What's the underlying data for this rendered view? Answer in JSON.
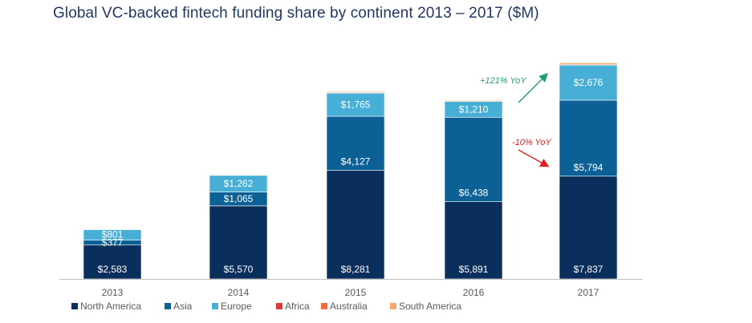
{
  "chart_data": {
    "type": "bar",
    "stacked": true,
    "title": "Global VC-backed fintech funding share by continent 2013 – 2017 ($M)",
    "categories": [
      "2013",
      "2014",
      "2015",
      "2016",
      "2017"
    ],
    "series": [
      {
        "name": "North America",
        "color": "#0b2f5c",
        "values": [
          2583,
          5570,
          8281,
          5891,
          7837
        ],
        "labels": [
          "$2,583",
          "$5,570",
          "$8,281",
          "$5,891",
          "$7,837"
        ]
      },
      {
        "name": "Asia",
        "color": "#0b6196",
        "values": [
          377,
          1065,
          4127,
          6438,
          5794
        ],
        "labels": [
          "$377",
          "$1,065",
          "$4,127",
          "$6,438",
          "$5,794"
        ]
      },
      {
        "name": "Europe",
        "color": "#47aed6",
        "values": [
          801,
          1262,
          1765,
          1210,
          2676
        ],
        "labels": [
          "$801",
          "$1,262",
          "$1,765",
          "$1,210",
          "$2,676"
        ]
      },
      {
        "name": "Africa",
        "color": "#e03a3e",
        "values": [
          0,
          0,
          0,
          0,
          0
        ],
        "labels": [
          "",
          "",
          "",
          "",
          ""
        ]
      },
      {
        "name": "Australia",
        "color": "#f26b3a",
        "values": [
          30,
          40,
          50,
          45,
          60
        ],
        "labels": [
          "",
          "",
          "",
          "",
          ""
        ]
      },
      {
        "name": "South America",
        "color": "#f4a869",
        "values": [
          30,
          45,
          60,
          60,
          110
        ],
        "labels": [
          "",
          "",
          "",
          "",
          ""
        ]
      }
    ],
    "ylim": [
      0,
      17000
    ],
    "legend_position": "bottom-left",
    "annotations": [
      {
        "text": "+121% YoY",
        "color": "#1e9e6e",
        "series": "Europe",
        "from": "2016",
        "to": "2017"
      },
      {
        "text": "-10% YoY",
        "color": "#e02020",
        "series": "Asia",
        "from": "2016",
        "to": "2017"
      }
    ]
  }
}
